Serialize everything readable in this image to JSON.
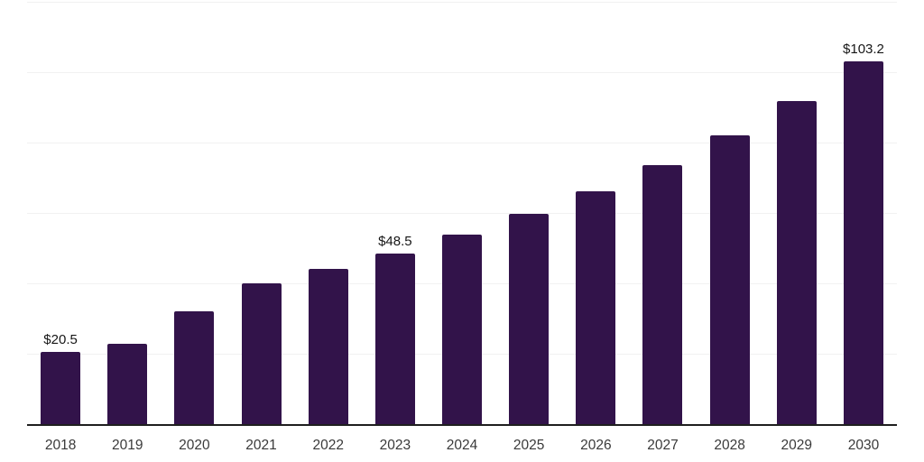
{
  "chart": {
    "bar_color": "#32134a",
    "axis_color": "#1f1f1f",
    "grid_color": "#f1f1f1",
    "tick_color": "#3a3a3a",
    "value_label_color": "#161616"
  },
  "chart_data": {
    "type": "bar",
    "title": "",
    "xlabel": "",
    "ylabel": "",
    "categories": [
      "2018",
      "2019",
      "2020",
      "2021",
      "2022",
      "2023",
      "2024",
      "2025",
      "2026",
      "2027",
      "2028",
      "2029",
      "2030"
    ],
    "values": [
      20.5,
      22.7,
      32.0,
      40.1,
      44.1,
      48.5,
      53.9,
      59.7,
      66.1,
      73.7,
      82.0,
      91.7,
      103.2
    ],
    "data_labels": [
      "$20.5",
      null,
      null,
      null,
      null,
      "$48.5",
      null,
      null,
      null,
      null,
      null,
      null,
      "$103.2"
    ],
    "ylim": [
      0,
      120
    ],
    "grid_step": 20,
    "grid": true,
    "legend": false,
    "y_axis_labels_visible": false
  }
}
